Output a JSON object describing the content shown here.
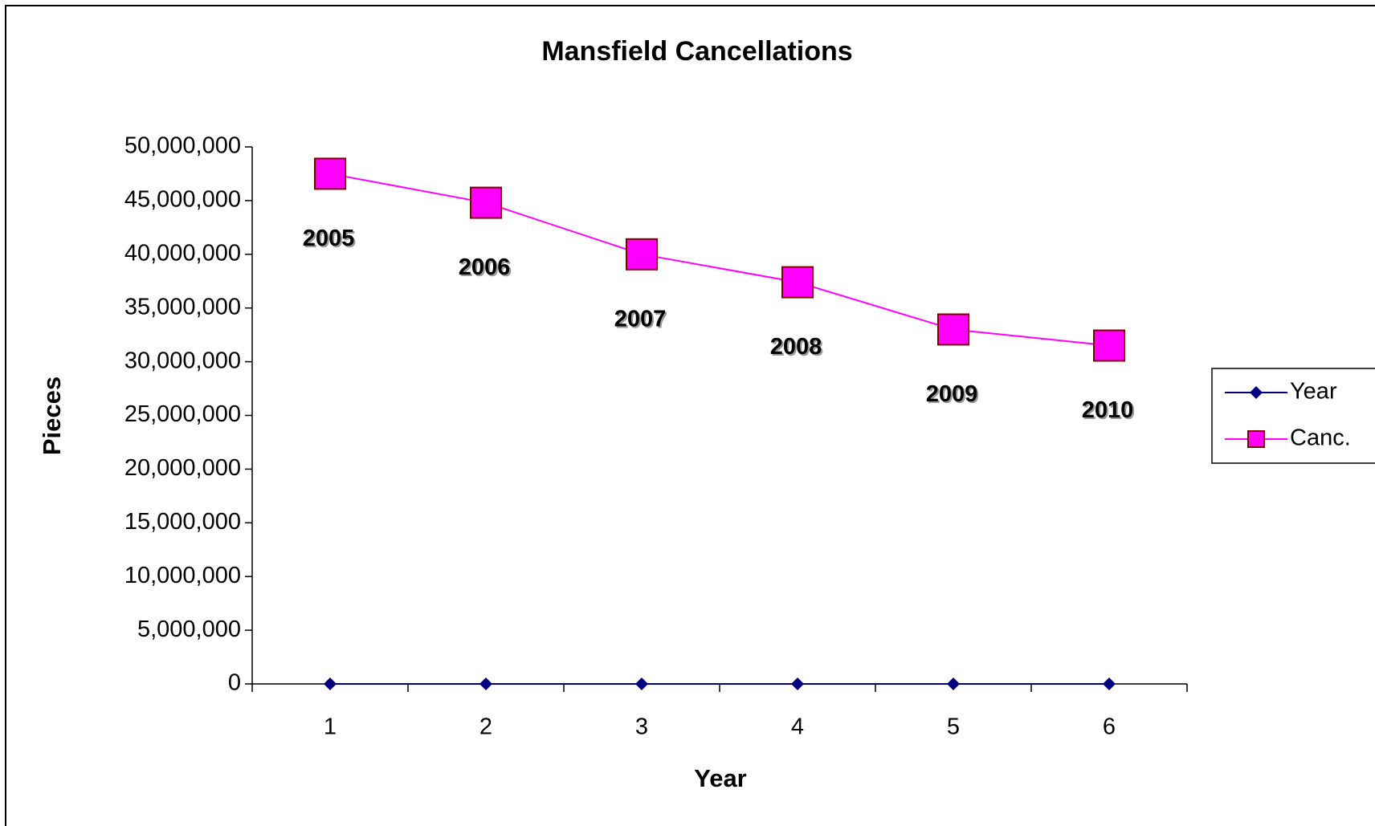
{
  "chart_data": {
    "type": "line",
    "title": "Mansfield Cancellations",
    "x_label": "Year",
    "y_label": "Pieces",
    "categories": [
      1,
      2,
      3,
      4,
      5,
      6
    ],
    "series": [
      {
        "name": "Year",
        "color": "#000080",
        "marker": "diamond",
        "values": [
          2005,
          2006,
          2007,
          2008,
          2009,
          2010
        ]
      },
      {
        "name": "Canc.",
        "color": "#ff00ff",
        "marker": "square",
        "values": [
          47500000,
          44800000,
          40000000,
          37400000,
          33000000,
          31500000
        ]
      }
    ],
    "data_labels_series": 0,
    "ylim": [
      0,
      50000000
    ],
    "yticks": [
      0,
      {
        "value": 5000000,
        "label": "5,000,000"
      },
      {
        "value": 10000000,
        "label": "10,000,000"
      },
      {
        "value": 15000000,
        "label": "15,000,000"
      },
      {
        "value": 20000000,
        "label": "20,000,000"
      },
      {
        "value": 25000000,
        "label": "25,000,000"
      },
      {
        "value": 30000000,
        "label": "30,000,000"
      },
      {
        "value": 35000000,
        "label": "35,000,000"
      },
      {
        "value": 40000000,
        "label": "40,000,000"
      },
      {
        "value": 45000000,
        "label": "45,000,000"
      },
      {
        "value": 50000000,
        "label": "50,000,000"
      }
    ],
    "legend": "right",
    "grid": false
  }
}
